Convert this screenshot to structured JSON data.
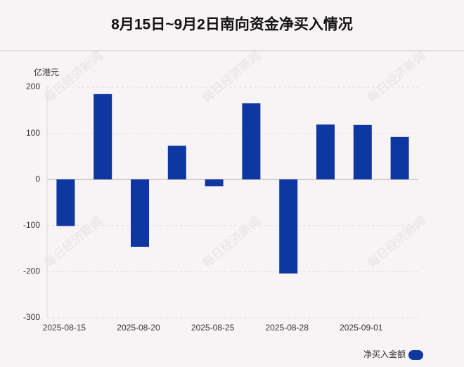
{
  "chart_data": {
    "type": "bar",
    "title": "8月15日~9月2日南向资金净买入情况",
    "y_label": "亿港元",
    "watermark": "每日经济新闻",
    "categories": [
      "2025-08-15",
      null,
      "2025-08-20",
      null,
      "2025-08-25",
      null,
      "2025-08-28",
      null,
      "2025-09-01",
      null
    ],
    "series": [
      {
        "name": "净买入金额",
        "color": "#0e37a1",
        "values": [
          -101,
          185,
          -146,
          73,
          -15,
          165,
          -204,
          119,
          118,
          92
        ]
      }
    ],
    "ylim": [
      -300,
      200
    ],
    "yticks": [
      -300,
      -200,
      -100,
      0,
      100,
      200
    ],
    "grid": true,
    "legend": "bottom-right"
  }
}
